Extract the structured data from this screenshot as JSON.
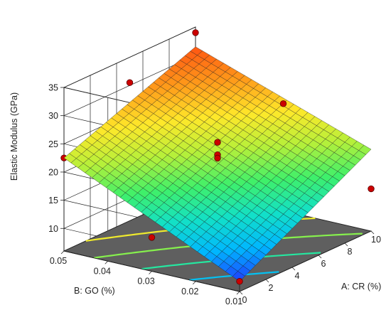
{
  "chart_data": {
    "type": "surface3d",
    "zlabel": "Elastic Modulus  (GPa)",
    "xlabel": "A: CR (%)",
    "ylabel": "B: GO (%)",
    "x_ticks": [
      0,
      2,
      4,
      6,
      8,
      10
    ],
    "y_ticks": [
      "0.01",
      "0.02",
      "0.03",
      "0.04",
      "0.05"
    ],
    "y_tick_values": [
      0.01,
      0.02,
      0.03,
      0.04,
      0.05
    ],
    "z_ticks": [
      10,
      15,
      20,
      25,
      30,
      35
    ],
    "xlim": [
      0,
      10
    ],
    "ylim": [
      0.01,
      0.05
    ],
    "zlim": [
      6,
      35
    ],
    "surface_corners": {
      "cr0_go001": 7.8,
      "cr10_go001": 20.5,
      "cr0_go005": 22.5,
      "cr10_go005": 31.5
    },
    "grid_divisions": 25,
    "colormap": [
      "#1f3cff",
      "#00b7ff",
      "#12e0c8",
      "#3ff06a",
      "#b5f03a",
      "#ffe82a",
      "#ff9a1a",
      "#ff5512"
    ],
    "design_points": [
      {
        "cr": 0,
        "go": 0.01,
        "modulus": 7.8,
        "above": true
      },
      {
        "cr": 10,
        "go": 0.01,
        "modulus": 13.5,
        "above": false
      },
      {
        "cr": 0,
        "go": 0.05,
        "modulus": 22.5,
        "above": false
      },
      {
        "cr": 10,
        "go": 0.05,
        "modulus": 34.0,
        "above": true
      },
      {
        "cr": 5,
        "go": 0.03,
        "modulus": 23.5,
        "above": true
      },
      {
        "cr": 5,
        "go": 0.03,
        "modulus": 21.3,
        "above": true
      },
      {
        "cr": 5,
        "go": 0.03,
        "modulus": 20.7,
        "above": true
      },
      {
        "cr": 5,
        "go": 0.05,
        "modulus": 30.5,
        "above": true
      },
      {
        "cr": 0,
        "go": 0.03,
        "modulus": 12.0,
        "above": false
      },
      {
        "cr": 5,
        "go": 0.01,
        "modulus": 15.0,
        "above": false
      },
      {
        "cr": 10,
        "go": 0.03,
        "modulus": 25.0,
        "above": true
      }
    ],
    "contour_levels": [
      12,
      16,
      20,
      24,
      28
    ],
    "grid": true
  }
}
